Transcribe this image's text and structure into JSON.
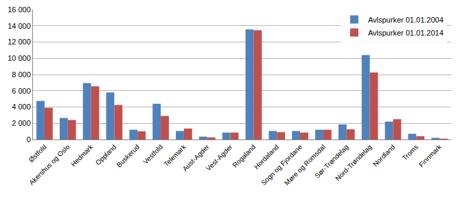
{
  "chart_data": {
    "type": "bar",
    "categories": [
      "Østfold",
      "Akershus og Oslo",
      "Hedmark",
      "Oppland",
      "Buskerud",
      "Vestfold",
      "Telemark",
      "Aust-Agder",
      "Vest-Agder",
      "Rogaland",
      "Hordaland",
      "Sogn og Fjordane",
      "Møre og Romsdal",
      "Sør-Trøndelag",
      "Nord-Trøndelag",
      "Nordland",
      "Troms",
      "Finnmark"
    ],
    "series": [
      {
        "name": "Avlspurker 01.01.2004",
        "color": "#4F81BD",
        "values": [
          4750,
          2650,
          6950,
          5800,
          1200,
          4400,
          1050,
          350,
          850,
          13550,
          1050,
          1050,
          1200,
          1850,
          10400,
          2200,
          700,
          200
        ]
      },
      {
        "name": "Avlspurker 01.01.2014",
        "color": "#C0504D",
        "values": [
          3900,
          2400,
          6550,
          4250,
          1000,
          2900,
          1350,
          250,
          850,
          13450,
          900,
          850,
          1200,
          1250,
          8250,
          2500,
          400,
          100
        ]
      }
    ],
    "ylim": [
      0,
      16000
    ],
    "yticks": [
      0,
      {
        "value": 2000,
        "label": "2 000"
      },
      {
        "value": 4000,
        "label": "4 000"
      },
      {
        "value": 6000,
        "label": "6 000"
      },
      {
        "value": 8000,
        "label": "8 000"
      },
      {
        "value": 10000,
        "label": "10 000"
      },
      {
        "value": 12000,
        "label": "12 000"
      },
      {
        "value": 14000,
        "label": "14 000"
      },
      {
        "value": 16000,
        "label": "16 000"
      }
    ],
    "grid": true,
    "legend": "top-right"
  }
}
